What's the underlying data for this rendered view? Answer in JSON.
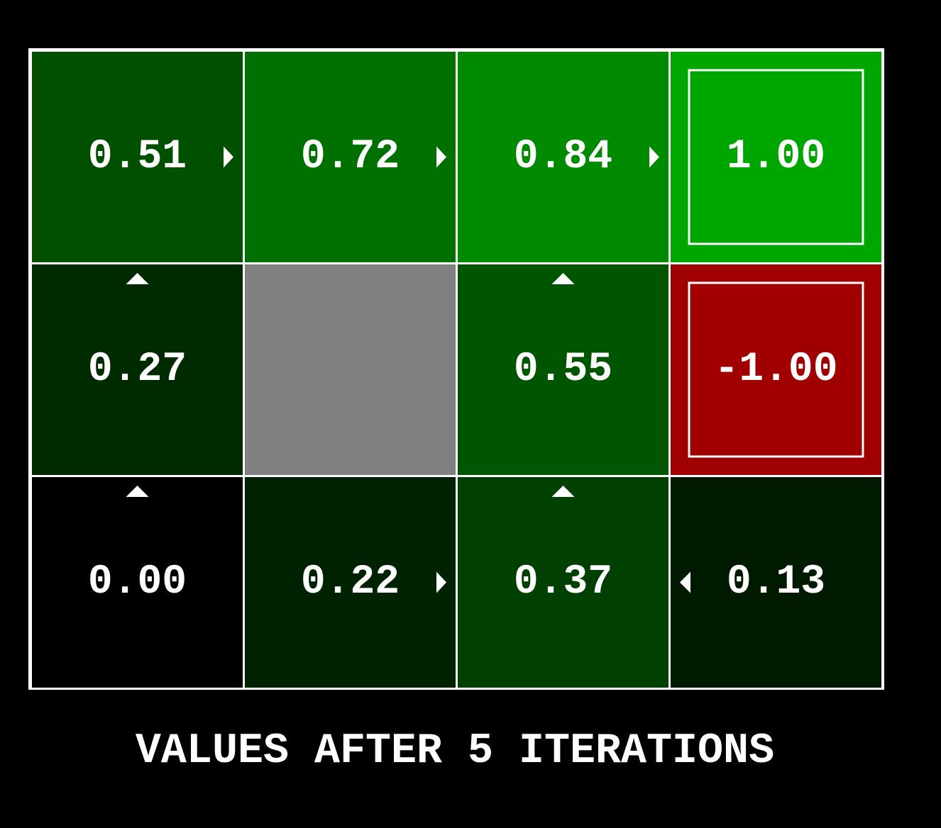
{
  "title": "VALUES AFTER 5 ITERATIONS",
  "grid": {
    "rows": [
      [
        {
          "value": "0.51",
          "color": "#005000",
          "arrow": "right"
        },
        {
          "value": "0.72",
          "color": "#007000",
          "arrow": "right"
        },
        {
          "value": "0.84",
          "color": "#008a00",
          "arrow": "right"
        },
        {
          "value": "1.00",
          "color": "#00a600",
          "terminal": true
        }
      ],
      [
        {
          "value": "0.27",
          "color": "#002b00",
          "arrow": "up"
        },
        {
          "color": "#808080",
          "wall": true
        },
        {
          "value": "0.55",
          "color": "#005500",
          "arrow": "up"
        },
        {
          "value": "-1.00",
          "color": "#a00000",
          "terminal": true
        }
      ],
      [
        {
          "value": "0.00",
          "color": "#000000",
          "arrow": "up"
        },
        {
          "value": "0.22",
          "color": "#002200",
          "arrow": "right"
        },
        {
          "value": "0.37",
          "color": "#004000",
          "arrow": "up"
        },
        {
          "value": "0.13",
          "color": "#001a00",
          "arrow": "left"
        }
      ]
    ]
  }
}
